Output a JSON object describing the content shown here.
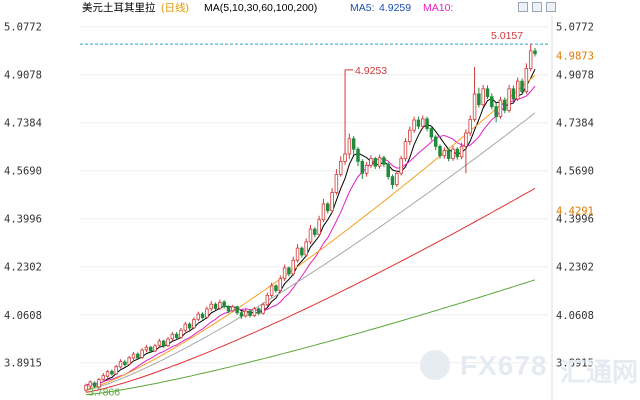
{
  "header": {
    "title": "美元土耳其里拉",
    "period": "(日线)",
    "ma_setting": "MA(5,10,30,60,100,200)",
    "ma5_label": "MA5:",
    "ma5_value": "4.9259",
    "ma10_label": "MA10:",
    "ma10_value": ""
  },
  "watermark": {
    "text": "FX678",
    "cn": "汇通网"
  },
  "colors": {
    "up": "#d23a3a",
    "down": "#1f8a3a",
    "grid": "#eeeeee",
    "ma5": "#000000",
    "ma10": "#e020c8",
    "ma30": "#f5a020",
    "ma60": "#a8a8a8",
    "ma100": "#e03030",
    "ma200": "#5aa838",
    "last_line": "#2aa0c0",
    "label_last": "#e07a00"
  },
  "chart_data": {
    "type": "candlestick",
    "title": "美元土耳其里拉(日线)",
    "ylim": [
      3.76,
      5.115
    ],
    "y_ticks": [
      "5.0772",
      "4.9078",
      "4.7384",
      "4.5690",
      "4.3996",
      "4.2302",
      "4.0608",
      "3.8915"
    ],
    "y_tick_values": [
      5.0772,
      4.9078,
      4.7384,
      4.569,
      4.3996,
      4.2302,
      4.0608,
      3.8915
    ],
    "grid": true,
    "annotations": {
      "high": "4.9253",
      "recent_high": "5.0157",
      "low": "3.7866"
    },
    "right_labels": {
      "ma30": "4.9873",
      "ma100": "4.4291"
    },
    "candles": [
      [
        3.795,
        3.812,
        3.787,
        3.818
      ],
      [
        3.809,
        3.824,
        3.8,
        3.829
      ],
      [
        3.82,
        3.808,
        3.802,
        3.826
      ],
      [
        3.806,
        3.832,
        3.802,
        3.838
      ],
      [
        3.833,
        3.846,
        3.828,
        3.855
      ],
      [
        3.844,
        3.86,
        3.838,
        3.866
      ],
      [
        3.861,
        3.852,
        3.846,
        3.868
      ],
      [
        3.852,
        3.878,
        3.848,
        3.884
      ],
      [
        3.877,
        3.896,
        3.871,
        3.904
      ],
      [
        3.894,
        3.885,
        3.878,
        3.902
      ],
      [
        3.886,
        3.909,
        3.881,
        3.916
      ],
      [
        3.908,
        3.922,
        3.902,
        3.93
      ],
      [
        3.922,
        3.908,
        3.902,
        3.928
      ],
      [
        3.91,
        3.936,
        3.905,
        3.943
      ],
      [
        3.937,
        3.946,
        3.929,
        3.954
      ],
      [
        3.946,
        3.933,
        3.926,
        3.951
      ],
      [
        3.933,
        3.951,
        3.929,
        3.958
      ],
      [
        3.953,
        3.968,
        3.946,
        3.976
      ],
      [
        3.968,
        3.951,
        3.944,
        3.973
      ],
      [
        3.952,
        3.975,
        3.947,
        3.983
      ],
      [
        3.976,
        3.992,
        3.97,
        4.0
      ],
      [
        3.992,
        3.98,
        3.974,
        4.0
      ],
      [
        3.981,
        4.006,
        3.976,
        4.014
      ],
      [
        4.006,
        4.028,
        4.0,
        4.036
      ],
      [
        4.028,
        4.014,
        4.006,
        4.034
      ],
      [
        4.015,
        4.044,
        4.01,
        4.052
      ],
      [
        4.045,
        4.063,
        4.038,
        4.072
      ],
      [
        4.063,
        4.051,
        4.044,
        4.07
      ],
      [
        4.052,
        4.081,
        4.046,
        4.09
      ],
      [
        4.082,
        4.098,
        4.073,
        4.109
      ],
      [
        4.098,
        4.083,
        4.076,
        4.104
      ],
      [
        4.084,
        4.105,
        4.078,
        4.114
      ],
      [
        4.106,
        4.09,
        4.082,
        4.112
      ],
      [
        4.09,
        4.074,
        4.066,
        4.094
      ],
      [
        4.075,
        4.089,
        4.069,
        4.096
      ],
      [
        4.089,
        4.068,
        4.06,
        4.093
      ],
      [
        4.068,
        4.056,
        4.046,
        4.074
      ],
      [
        4.057,
        4.074,
        4.051,
        4.081
      ],
      [
        4.074,
        4.058,
        4.051,
        4.079
      ],
      [
        4.058,
        4.082,
        4.053,
        4.089
      ],
      [
        4.082,
        4.066,
        4.059,
        4.087
      ],
      [
        4.066,
        4.096,
        4.061,
        4.104
      ],
      [
        4.096,
        4.129,
        4.089,
        4.139
      ],
      [
        4.129,
        4.163,
        4.121,
        4.174
      ],
      [
        4.163,
        4.146,
        4.138,
        4.168
      ],
      [
        4.146,
        4.188,
        4.14,
        4.2
      ],
      [
        4.188,
        4.226,
        4.18,
        4.238
      ],
      [
        4.226,
        4.205,
        4.196,
        4.231
      ],
      [
        4.205,
        4.253,
        4.198,
        4.266
      ],
      [
        4.253,
        4.296,
        4.245,
        4.31
      ],
      [
        4.296,
        4.272,
        4.262,
        4.302
      ],
      [
        4.272,
        4.318,
        4.265,
        4.33
      ],
      [
        4.318,
        4.363,
        4.31,
        4.378
      ],
      [
        4.363,
        4.344,
        4.334,
        4.37
      ],
      [
        4.344,
        4.396,
        4.336,
        4.41
      ],
      [
        4.396,
        4.452,
        4.388,
        4.47
      ],
      [
        4.452,
        4.428,
        4.418,
        4.458
      ],
      [
        4.428,
        4.492,
        4.42,
        4.508
      ],
      [
        4.492,
        4.556,
        4.484,
        4.575
      ],
      [
        4.556,
        4.602,
        4.548,
        4.62
      ],
      [
        4.602,
        4.628,
        4.59,
        4.925
      ],
      [
        4.628,
        4.682,
        4.61,
        4.7
      ],
      [
        4.682,
        4.645,
        4.625,
        4.692
      ],
      [
        4.645,
        4.602,
        4.585,
        4.652
      ],
      [
        4.602,
        4.56,
        4.54,
        4.61
      ],
      [
        4.56,
        4.588,
        4.548,
        4.6
      ],
      [
        4.588,
        4.612,
        4.578,
        4.624
      ],
      [
        4.612,
        4.585,
        4.575,
        4.618
      ],
      [
        4.585,
        4.615,
        4.576,
        4.626
      ],
      [
        4.615,
        4.592,
        4.582,
        4.622
      ],
      [
        4.592,
        4.548,
        4.538,
        4.598
      ],
      [
        4.548,
        4.52,
        4.505,
        4.556
      ],
      [
        4.52,
        4.56,
        4.512,
        4.57
      ],
      [
        4.56,
        4.612,
        4.552,
        4.622
      ],
      [
        4.612,
        4.672,
        4.602,
        4.684
      ],
      [
        4.672,
        4.712,
        4.66,
        4.725
      ],
      [
        4.712,
        4.748,
        4.702,
        4.76
      ],
      [
        4.748,
        4.726,
        4.716,
        4.76
      ],
      [
        4.726,
        4.752,
        4.716,
        4.764
      ],
      [
        4.752,
        4.718,
        4.708,
        4.76
      ],
      [
        4.718,
        4.688,
        4.676,
        4.728
      ],
      [
        4.688,
        4.655,
        4.642,
        4.695
      ],
      [
        4.655,
        4.622,
        4.612,
        4.662
      ],
      [
        4.622,
        4.64,
        4.612,
        4.651
      ],
      [
        4.64,
        4.612,
        4.602,
        4.648
      ],
      [
        4.612,
        4.645,
        4.604,
        4.656
      ],
      [
        4.645,
        4.618,
        4.608,
        4.652
      ],
      [
        4.618,
        4.655,
        4.61,
        4.668
      ],
      [
        4.655,
        4.702,
        4.56,
        4.715
      ],
      [
        4.702,
        4.75,
        4.692,
        4.765
      ],
      [
        4.75,
        4.84,
        4.742,
        4.935
      ],
      [
        4.84,
        4.802,
        4.792,
        4.862
      ],
      [
        4.802,
        4.858,
        4.795,
        4.872
      ],
      [
        4.858,
        4.83,
        4.822,
        4.87
      ],
      [
        4.83,
        4.795,
        4.785,
        4.842
      ],
      [
        4.795,
        4.76,
        4.74,
        4.808
      ],
      [
        4.76,
        4.818,
        4.752,
        4.83
      ],
      [
        4.818,
        4.782,
        4.772,
        4.828
      ],
      [
        4.782,
        4.858,
        4.774,
        4.872
      ],
      [
        4.858,
        4.822,
        4.812,
        4.87
      ],
      [
        4.822,
        4.885,
        4.815,
        4.898
      ],
      [
        4.885,
        4.848,
        4.838,
        4.895
      ],
      [
        4.848,
        4.93,
        4.84,
        4.948
      ],
      [
        4.93,
        4.992,
        4.92,
        5.016
      ],
      [
        4.992,
        4.982,
        4.972,
        5.002
      ]
    ]
  }
}
